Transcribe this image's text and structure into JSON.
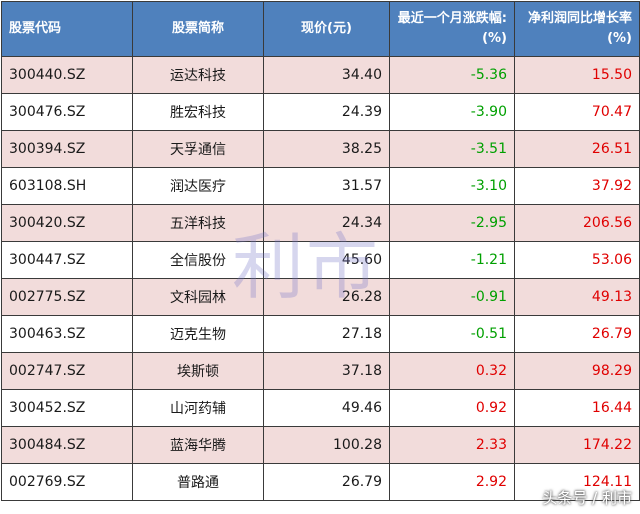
{
  "table": {
    "headers": [
      "股票代码",
      "股票简称",
      "现价(元)",
      "最近一个月涨跌幅:(%)",
      "净利润同比增长率(%)"
    ],
    "rows": [
      {
        "code": "300440.SZ",
        "name": "运达科技",
        "price": "34.40",
        "change": "-5.36",
        "growth": "15.50"
      },
      {
        "code": "300476.SZ",
        "name": "胜宏科技",
        "price": "24.39",
        "change": "-3.90",
        "growth": "70.47"
      },
      {
        "code": "300394.SZ",
        "name": "天孚通信",
        "price": "38.25",
        "change": "-3.51",
        "growth": "26.51"
      },
      {
        "code": "603108.SH",
        "name": "润达医疗",
        "price": "31.57",
        "change": "-3.10",
        "growth": "37.92"
      },
      {
        "code": "300420.SZ",
        "name": "五洋科技",
        "price": "24.34",
        "change": "-2.95",
        "growth": "206.56"
      },
      {
        "code": "300447.SZ",
        "name": "全信股份",
        "price": "45.60",
        "change": "-1.21",
        "growth": "53.06"
      },
      {
        "code": "002775.SZ",
        "name": "文科园林",
        "price": "26.28",
        "change": "-0.91",
        "growth": "49.13"
      },
      {
        "code": "300463.SZ",
        "name": "迈克生物",
        "price": "27.18",
        "change": "-0.51",
        "growth": "26.79"
      },
      {
        "code": "002747.SZ",
        "name": "埃斯顿",
        "price": "37.18",
        "change": "0.32",
        "growth": "98.29"
      },
      {
        "code": "300452.SZ",
        "name": "山河药辅",
        "price": "49.46",
        "change": "0.92",
        "growth": "16.44"
      },
      {
        "code": "300484.SZ",
        "name": "蓝海华腾",
        "price": "100.28",
        "change": "2.33",
        "growth": "174.22"
      },
      {
        "code": "002769.SZ",
        "name": "普路通",
        "price": "26.79",
        "change": "2.92",
        "growth": "124.11"
      }
    ]
  },
  "watermark": "利市",
  "credit": "头条号 / 利市",
  "colors": {
    "header_bg": "#4f81bd",
    "row_shade": "#f2dcdb",
    "negative": "#00a000",
    "positive": "#e00000"
  }
}
